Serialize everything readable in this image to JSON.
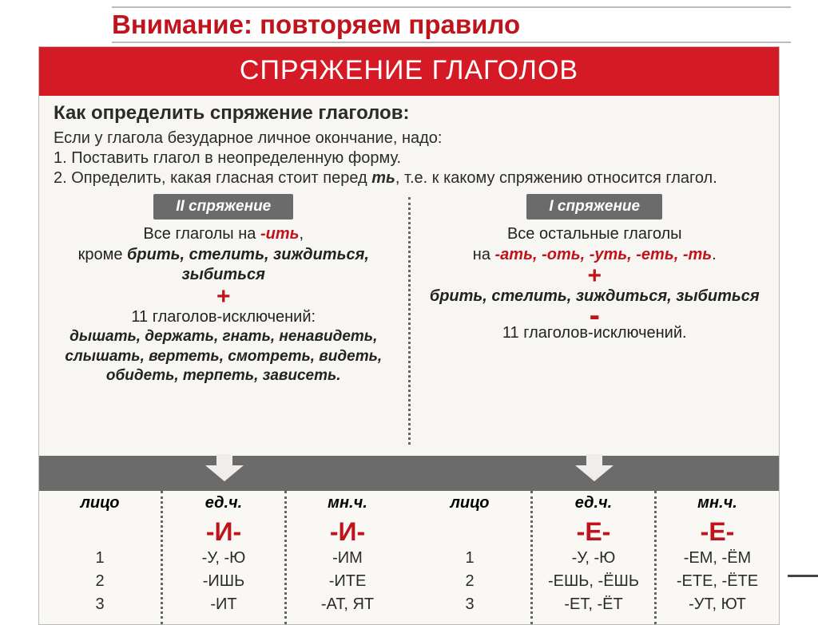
{
  "header": "Внимание: повторяем правило",
  "banner": "СПРЯЖЕНИЕ ГЛАГОЛОВ",
  "intro": {
    "q": "Как определить спряжение глаголов:",
    "l1": "Если у глагола безударное личное окончание, надо:",
    "l2": "1. Поставить глагол в неопределенную форму.",
    "l3a": "2. Определить, какая гласная стоит перед ",
    "l3b": "ть",
    "l3c": ", т.е. к какому спряжению относится глагол."
  },
  "left": {
    "title": "II спряжение",
    "line1a": "Все глаголы на ",
    "line1b": "-ить",
    "line1c": ",",
    "line2a": "кроме ",
    "line2b": "брить, стелить, зиждиться, зыбиться",
    "plus": "+",
    "line3": "11 глаголов-исключений:",
    "exceptions": "дышать, держать, гнать, ненавидеть, слышать, вертеть, смотреть, видеть, обидеть, терпеть, зависеть."
  },
  "right": {
    "title": "I спряжение",
    "line1": "Все остальные глаголы",
    "line2a": "на ",
    "line2b": "-ать, -оть, -уть, -еть, -ть",
    "line2c": ".",
    "plus": "+",
    "line3": "брить, стелить, зиждиться, зыбиться",
    "minus": "-",
    "line4": "11 глаголов-исключений."
  },
  "table": {
    "h_person": "лицо",
    "h_sg": "ед.ч.",
    "h_pl": "мн.ч.",
    "left_big_sg": "-И-",
    "left_big_pl": "-И-",
    "right_big_sg": "-Е-",
    "right_big_pl": "-Е-",
    "rows": {
      "r1": "1",
      "r2": "2",
      "r3": "3",
      "l_sg1": "-У, -Ю",
      "l_sg2": "-ИШЬ",
      "l_sg3": "-ИТ",
      "l_pl1": "-ИМ",
      "l_pl2": "-ИТЕ",
      "l_pl3": "-АТ, ЯТ",
      "r_sg1": "-У, -Ю",
      "r_sg2": "-ЕШЬ, -ЁШЬ",
      "r_sg3": "-ЕТ, -ЁТ",
      "r_pl1": "-ЕМ, -ЁМ",
      "r_pl2": "-ЕТЕ, -ЁТЕ",
      "r_pl3": "-УТ, ЮТ"
    }
  }
}
